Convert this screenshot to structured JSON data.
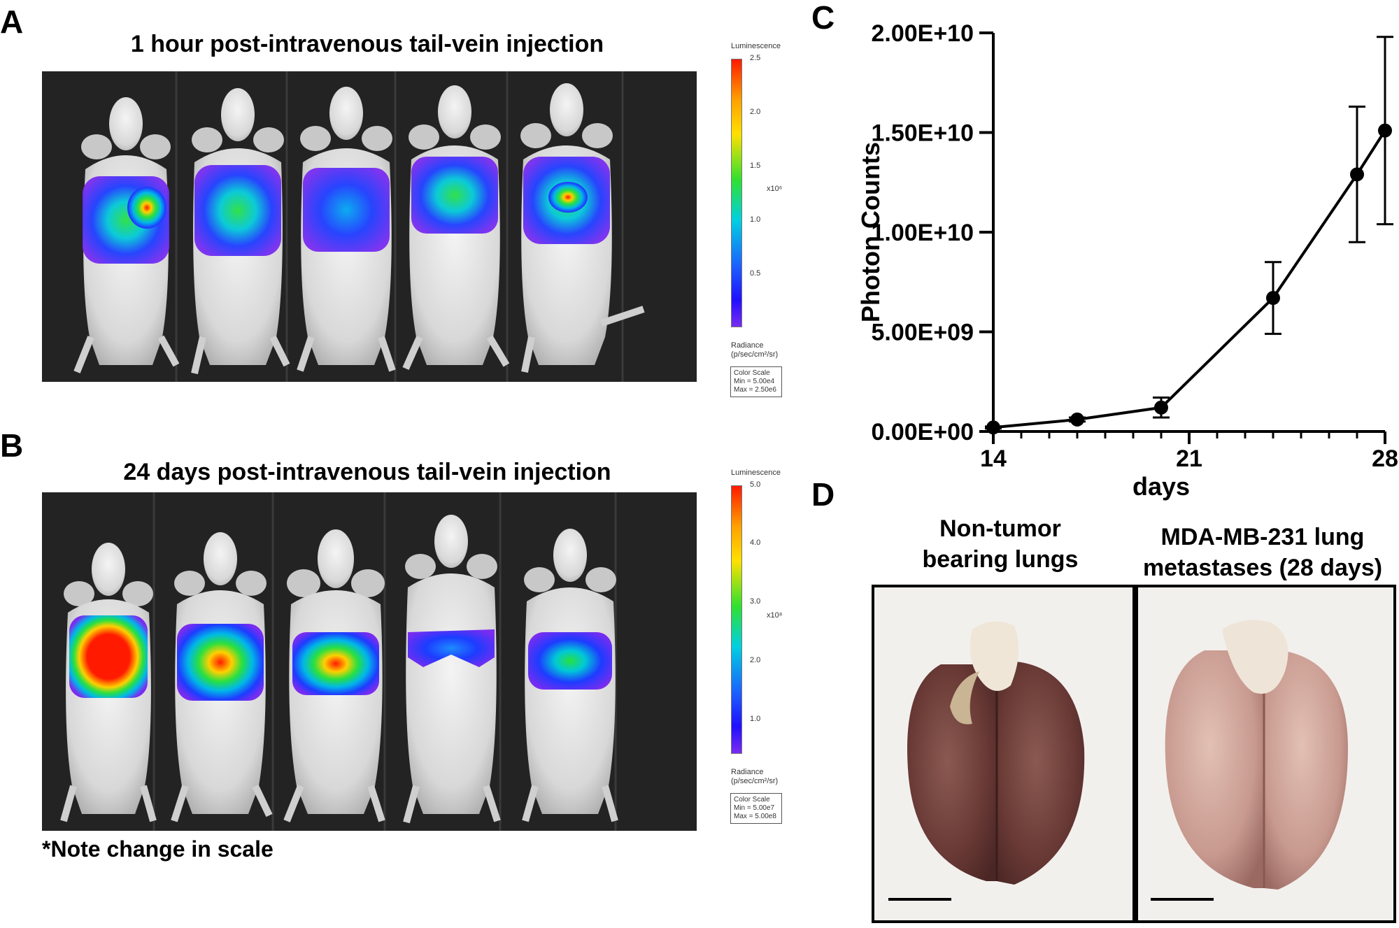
{
  "panelA": {
    "letter": "A",
    "title": "1 hour post-intravenous tail-vein injection",
    "colorbar": {
      "top_label": "Luminescence",
      "ticks": [
        "2.5",
        "2.0",
        "1.5",
        "1.0",
        "0.5"
      ],
      "exponent": "x10⁶",
      "radiance_label": "Radiance",
      "radiance_units": "(p/sec/cm²/sr)",
      "scale_title": "Color Scale",
      "scale_min": "Min = 5.00e4",
      "scale_max": "Max = 2.50e6"
    }
  },
  "panelB": {
    "letter": "B",
    "title": "24 days post-intravenous tail-vein injection",
    "note": "*Note change in scale",
    "colorbar": {
      "top_label": "Luminescence",
      "ticks": [
        "5.0",
        "4.0",
        "3.0",
        "2.0",
        "1.0"
      ],
      "exponent": "x10⁸",
      "radiance_label": "Radiance",
      "radiance_units": "(p/sec/cm²/sr)",
      "scale_title": "Color Scale",
      "scale_min": "Min = 5.00e7",
      "scale_max": "Max = 5.00e8"
    }
  },
  "panelC": {
    "letter": "C"
  },
  "panelD": {
    "letter": "D",
    "left_title_line1": "Non-tumor",
    "left_title_line2": "bearing lungs",
    "right_title_line1": "MDA-MB-231 lung",
    "right_title_line2": "metastases (28 days)"
  },
  "chart_data": {
    "type": "line",
    "title": "",
    "xlabel": "days",
    "ylabel": "Photon Counts",
    "xlim": [
      14,
      28
    ],
    "ylim": [
      0,
      20000000000
    ],
    "x_ticks": [
      14,
      21,
      28
    ],
    "x_tick_labels": [
      "14",
      "21",
      "28"
    ],
    "y_ticks": [
      0,
      5000000000,
      10000000000,
      15000000000,
      20000000000
    ],
    "y_tick_labels": [
      "0.00E+00",
      "5.00E+09",
      "1.00E+10",
      "1.50E+10",
      "2.00E+10"
    ],
    "series": [
      {
        "name": "Photon Counts",
        "x": [
          14,
          17,
          20,
          24,
          27,
          28
        ],
        "values": [
          200000000,
          600000000,
          1200000000,
          6700000000,
          12900000000,
          15100000000
        ],
        "error": [
          50000000,
          100000000,
          500000000,
          1800000000,
          3400000000,
          4700000000
        ]
      }
    ]
  }
}
